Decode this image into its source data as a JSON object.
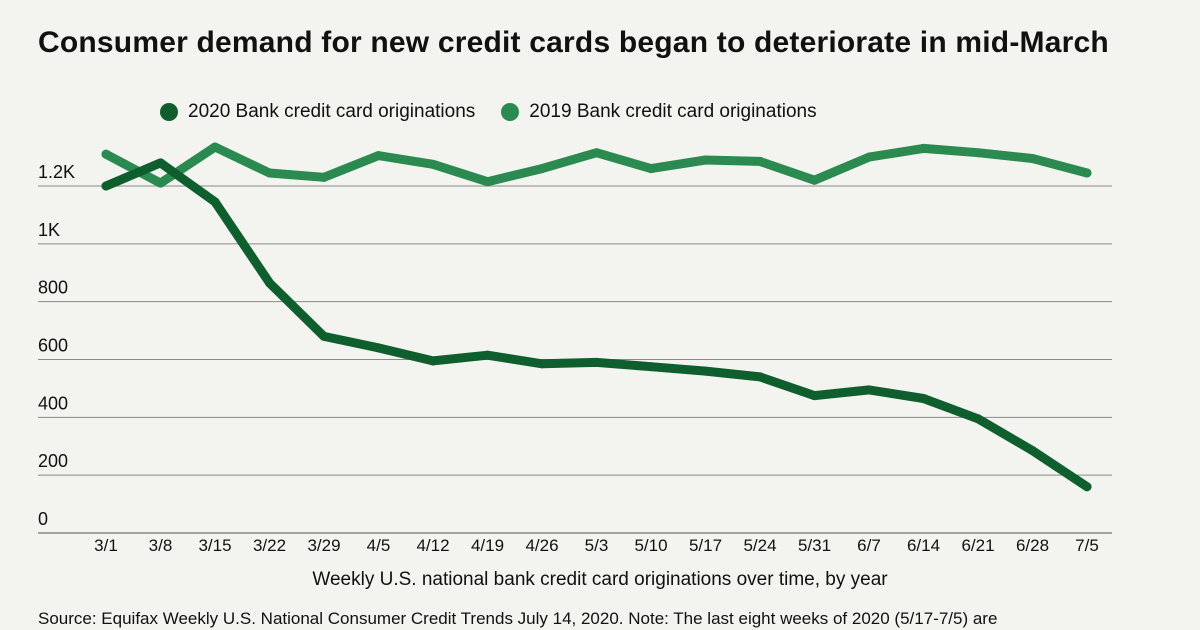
{
  "title": "Consumer demand for new credit cards began to deteriorate in mid-March",
  "source_note": "Source: Equifax Weekly U.S. National Consumer Credit Trends July 14, 2020. Note: The last eight weeks of 2020 (5/17-7/5) are",
  "chart_data": {
    "type": "line",
    "title": "Consumer demand for new credit cards began to deteriorate in mid-March",
    "xlabel": "Weekly U.S. national bank credit card originations over time, by year",
    "ylabel": "",
    "categories": [
      "3/1",
      "3/8",
      "3/15",
      "3/22",
      "3/29",
      "4/5",
      "4/12",
      "4/19",
      "4/26",
      "5/3",
      "5/10",
      "5/17",
      "5/24",
      "5/31",
      "6/7",
      "6/14",
      "6/21",
      "6/28",
      "7/5"
    ],
    "y_ticks": [
      {
        "value": 0,
        "label": "0"
      },
      {
        "value": 200,
        "label": "200"
      },
      {
        "value": 400,
        "label": "400"
      },
      {
        "value": 600,
        "label": "600"
      },
      {
        "value": 800,
        "label": "800"
      },
      {
        "value": 1000,
        "label": "1K"
      },
      {
        "value": 1200,
        "label": "1.2K"
      }
    ],
    "ylim": [
      0,
      1200
    ],
    "grid": true,
    "legend_position": "top",
    "series": [
      {
        "name": "2020 Bank credit card originations",
        "color": "#0f5f2e",
        "values": [
          1200,
          1280,
          1145,
          865,
          680,
          640,
          595,
          615,
          585,
          590,
          575,
          560,
          540,
          475,
          495,
          465,
          395,
          285,
          160
        ]
      },
      {
        "name": "2019 Bank credit card originations",
        "color": "#2a8a4f",
        "values": [
          1310,
          1210,
          1335,
          1245,
          1230,
          1305,
          1275,
          1215,
          1260,
          1315,
          1260,
          1290,
          1285,
          1220,
          1300,
          1330,
          1315,
          1295,
          1245
        ]
      }
    ]
  }
}
